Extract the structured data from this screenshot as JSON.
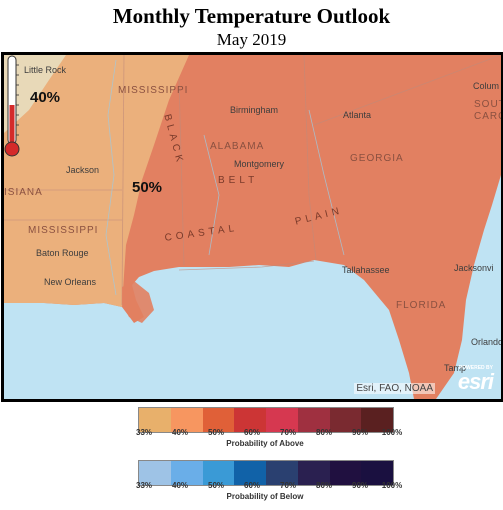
{
  "title": "Monthly Temperature Outlook",
  "subtitle": "May 2019",
  "map": {
    "probability_labels": [
      "40%",
      "50%"
    ],
    "cities": [
      "Little Rock",
      "Jackson",
      "Baton Rouge",
      "New Orleans",
      "Birmingham",
      "Montgomery",
      "Atlanta",
      "Tallahassee",
      "Jacksonvi",
      "Orlando",
      "Tamp",
      "Colum"
    ],
    "states": [
      "MISSISSIPPI",
      "ALABAMA",
      "GEORGIA",
      "FLORIDA",
      "ISIANA",
      "MISSISSIPPI",
      "SOUTH",
      "CAROL"
    ],
    "regions": [
      "BLACK",
      "BELT",
      "COASTAL",
      "PLAIN"
    ],
    "attribution": "Esri, FAO, NOAA",
    "logo_powered": "POWERED BY",
    "logo_name": "esri"
  },
  "legend_above": {
    "title": "Probability of Above",
    "ticks": [
      "33%",
      "40%",
      "50%",
      "60%",
      "70%",
      "80%",
      "90%",
      "100%"
    ],
    "colors": [
      "#e8b06b",
      "#f79660",
      "#e06038",
      "#cc3535",
      "#d63850",
      "#9f3040",
      "#7a2a30",
      "#5a2020"
    ]
  },
  "legend_below": {
    "title": "Probability of Below",
    "ticks": [
      "33%",
      "40%",
      "50%",
      "60%",
      "70%",
      "80%",
      "90%",
      "100%"
    ],
    "colors": [
      "#9ec3e6",
      "#6aaee8",
      "#3a9ad6",
      "#1162a8",
      "#2a4070",
      "#2a2050",
      "#201040",
      "#1a1040"
    ]
  }
}
